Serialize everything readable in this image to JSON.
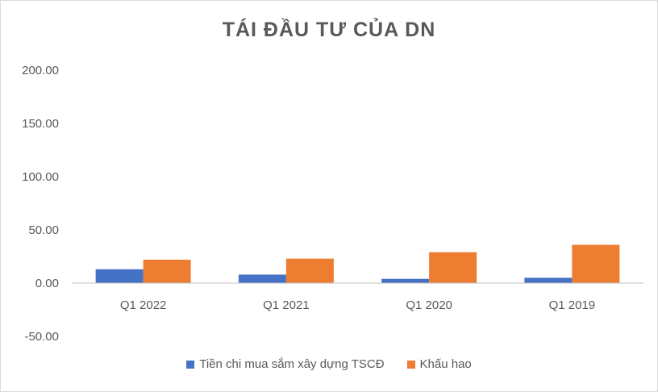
{
  "chart_data": {
    "type": "bar",
    "title": "TÁI ĐẦU TƯ CỦA DN",
    "categories": [
      "Q1 2022",
      "Q1 2021",
      "Q1 2020",
      "Q1 2019"
    ],
    "series": [
      {
        "name": "Tiền chi mua sắm xây dựng TSCĐ",
        "color": "#4472c4",
        "values": [
          13,
          8,
          4,
          5
        ]
      },
      {
        "name": "Khấu hao",
        "color": "#ed7d31",
        "values": [
          22,
          23,
          29,
          36
        ]
      }
    ],
    "ylim": [
      -50,
      200
    ],
    "yticks": [
      "200.00",
      "150.00",
      "100.00",
      "50.00",
      "0.00",
      "-50.00"
    ],
    "ytick_values": [
      200,
      150,
      100,
      50,
      0,
      -50
    ],
    "legend_position": "bottom",
    "grid": false
  }
}
